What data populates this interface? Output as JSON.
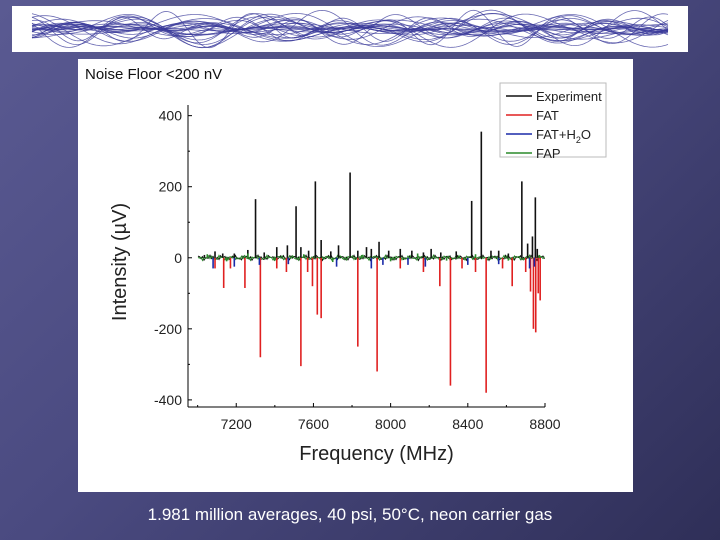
{
  "slide": {
    "panel_label": "Noise Floor <200 nV",
    "caption": "1.981 million averages, 40 psi, 50°C, neon carrier gas"
  },
  "colors": {
    "experiment": "#111111",
    "fat": "#e02020",
    "fat_h2o": "#1a2aa8",
    "fap": "#2a8a2a",
    "banner_pattern": "#3a3a9a"
  },
  "chart_data": {
    "type": "line",
    "title": "",
    "xlabel": "Frequency (MHz)",
    "ylabel": "Intensity (µV)",
    "xlim": [
      6950,
      8800
    ],
    "ylim": [
      -420,
      430
    ],
    "xticks": [
      7200,
      7600,
      8000,
      8400,
      8800
    ],
    "yticks": [
      -400,
      -200,
      0,
      200,
      400
    ],
    "xtick_labels": [
      "7200",
      "7600",
      "8000",
      "8400",
      "8800"
    ],
    "ytick_labels": [
      "-400",
      "-200",
      "0",
      "200",
      "400"
    ],
    "legend_position": "top-right",
    "series": [
      {
        "name": "Experiment",
        "style": "stick",
        "peaks": [
          [
            7035,
            8
          ],
          [
            7090,
            18
          ],
          [
            7130,
            12
          ],
          [
            7190,
            12
          ],
          [
            7260,
            22
          ],
          [
            7300,
            165
          ],
          [
            7345,
            15
          ],
          [
            7410,
            30
          ],
          [
            7465,
            35
          ],
          [
            7510,
            145
          ],
          [
            7535,
            30
          ],
          [
            7575,
            20
          ],
          [
            7610,
            215
          ],
          [
            7640,
            50
          ],
          [
            7690,
            18
          ],
          [
            7730,
            35
          ],
          [
            7790,
            240
          ],
          [
            7830,
            20
          ],
          [
            7875,
            30
          ],
          [
            7900,
            25
          ],
          [
            7940,
            45
          ],
          [
            7990,
            20
          ],
          [
            8050,
            25
          ],
          [
            8110,
            20
          ],
          [
            8170,
            15
          ],
          [
            8210,
            25
          ],
          [
            8260,
            15
          ],
          [
            8340,
            18
          ],
          [
            8420,
            160
          ],
          [
            8470,
            355
          ],
          [
            8520,
            20
          ],
          [
            8560,
            20
          ],
          [
            8610,
            12
          ],
          [
            8680,
            215
          ],
          [
            8710,
            40
          ],
          [
            8735,
            60
          ],
          [
            8750,
            170
          ],
          [
            8760,
            25
          ]
        ]
      },
      {
        "name": "FAT",
        "style": "stick",
        "peaks": [
          [
            7090,
            -30
          ],
          [
            7135,
            -85
          ],
          [
            7170,
            -30
          ],
          [
            7245,
            -85
          ],
          [
            7325,
            -280
          ],
          [
            7410,
            -30
          ],
          [
            7460,
            -40
          ],
          [
            7535,
            -305
          ],
          [
            7570,
            -40
          ],
          [
            7595,
            -80
          ],
          [
            7620,
            -160
          ],
          [
            7640,
            -170
          ],
          [
            7830,
            -250
          ],
          [
            7930,
            -320
          ],
          [
            8050,
            -30
          ],
          [
            8170,
            -40
          ],
          [
            8255,
            -80
          ],
          [
            8310,
            -360
          ],
          [
            8370,
            -30
          ],
          [
            8440,
            -40
          ],
          [
            8495,
            -380
          ],
          [
            8580,
            -30
          ],
          [
            8630,
            -80
          ],
          [
            8700,
            -40
          ],
          [
            8725,
            -95
          ],
          [
            8740,
            -200
          ],
          [
            8752,
            -210
          ],
          [
            8765,
            -100
          ],
          [
            8775,
            -120
          ]
        ]
      },
      {
        "name": "FAT+H2O",
        "style": "stick",
        "peaks": [
          [
            7080,
            -30
          ],
          [
            7190,
            -25
          ],
          [
            7320,
            -20
          ],
          [
            7470,
            -18
          ],
          [
            7720,
            -25
          ],
          [
            7900,
            -30
          ],
          [
            7960,
            -20
          ],
          [
            8090,
            -20
          ],
          [
            8180,
            -25
          ],
          [
            8400,
            -20
          ],
          [
            8560,
            -18
          ],
          [
            8720,
            -30
          ],
          [
            8745,
            -25
          ]
        ]
      },
      {
        "name": "FAP",
        "style": "stick",
        "peaks": [
          [
            7050,
            10
          ],
          [
            7150,
            -10
          ],
          [
            7260,
            12
          ],
          [
            7400,
            -8
          ],
          [
            7550,
            10
          ],
          [
            7700,
            -12
          ],
          [
            7850,
            8
          ],
          [
            8000,
            -10
          ],
          [
            8140,
            12
          ],
          [
            8290,
            -8
          ],
          [
            8440,
            10
          ],
          [
            8610,
            -8
          ],
          [
            8770,
            8
          ]
        ]
      }
    ]
  }
}
